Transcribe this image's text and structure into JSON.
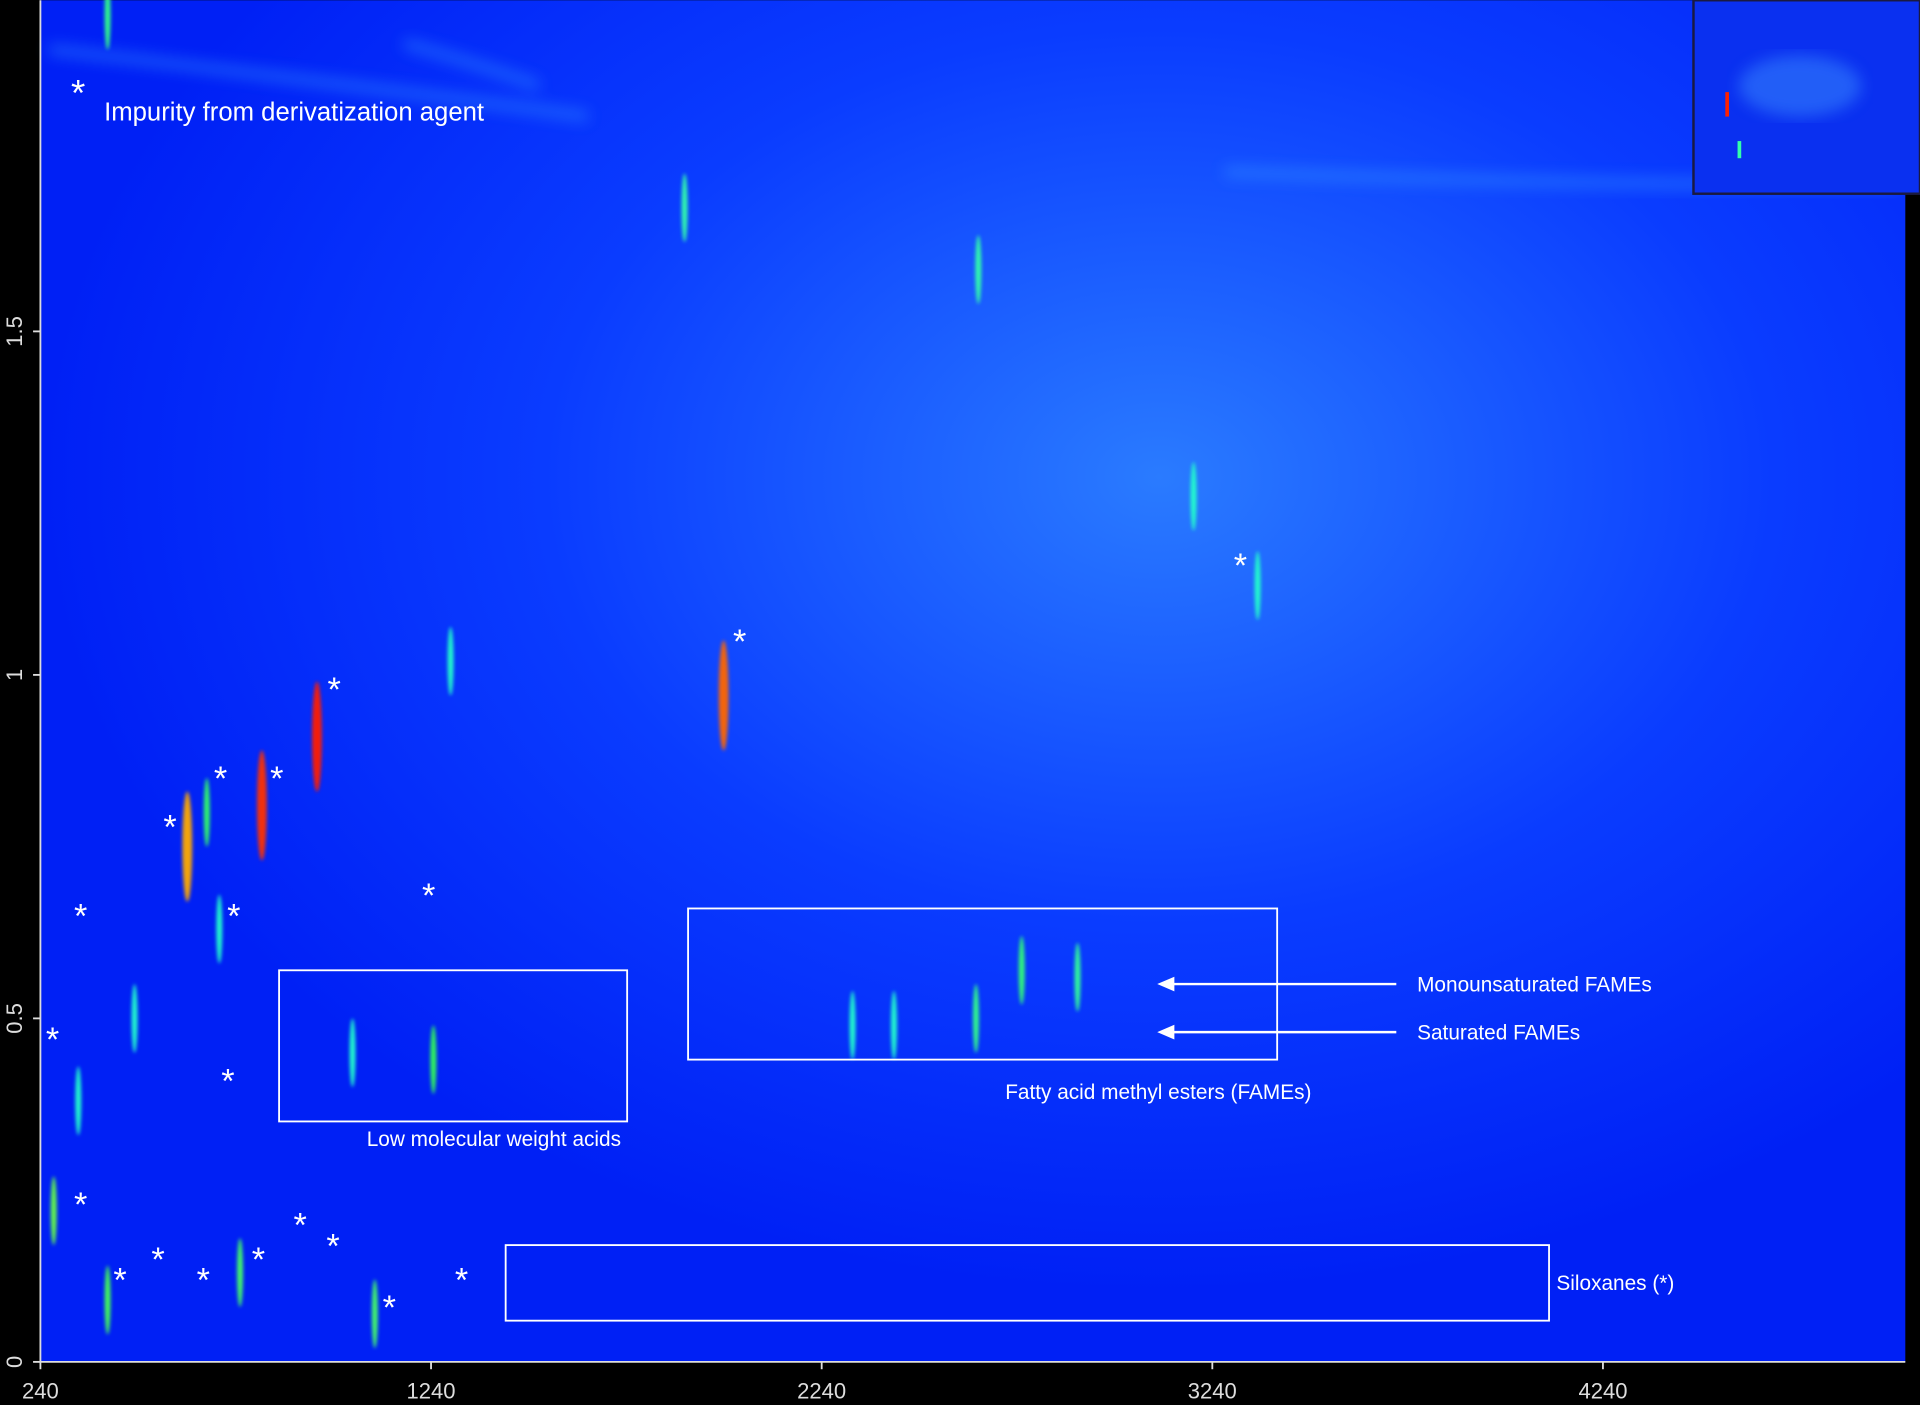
{
  "chart_data": {
    "type": "heatmap",
    "xlim": [
      240,
      5014
    ],
    "ylim": [
      0,
      1.982
    ],
    "xticks": [
      240,
      1240,
      2240,
      3240,
      4240
    ],
    "yticks": [
      0,
      0.5,
      1,
      1.5
    ],
    "legend": {
      "symbol": "*",
      "label": "Impurity from derivatization agent"
    },
    "peaks": {
      "x": [
        948,
        807,
        616,
        666,
        1989,
        1246,
        274,
        412,
        1889,
        2641,
        3356,
        3192,
        2752,
        2635,
        2319,
        2425,
        2895,
        1039,
        1290,
        751,
        412,
        337,
        481,
        698,
        1096
      ],
      "y": [
        0.91,
        0.81,
        0.75,
        0.8,
        0.97,
        0.44,
        0.22,
        1.96,
        1.68,
        1.59,
        1.13,
        1.26,
        0.57,
        0.5,
        0.49,
        0.49,
        0.56,
        0.45,
        1.02,
        0.13,
        0.09,
        0.38,
        0.5,
        0.63,
        0.07
      ],
      "colors": [
        "#ff1a00",
        "#ff3300",
        "#ffaa00",
        "#33ff66",
        "#ff6600",
        "#33ff55",
        "#66ff44",
        "#33ff88",
        "#33ffaa",
        "#33ffaa",
        "#22ffcc",
        "#22ffcc",
        "#33ff77",
        "#33ff88",
        "#22ffcc",
        "#22ffcc",
        "#33ff99",
        "#22ffcc",
        "#22ffcc",
        "#44ff66",
        "#44ff55",
        "#22ffcc",
        "#22ffcc",
        "#22ffcc",
        "#44ff66"
      ]
    },
    "impurities": {
      "x": [
        3312,
        2030,
        992,
        701,
        845,
        572,
        343,
        735,
        1234,
        271,
        720,
        343,
        905,
        989,
        444,
        541,
        657,
        798,
        1318,
        1133
      ],
      "y": [
        1.16,
        1.05,
        0.98,
        0.85,
        0.85,
        0.78,
        0.65,
        0.65,
        0.68,
        0.47,
        0.41,
        0.23,
        0.2,
        0.17,
        0.12,
        0.15,
        0.12,
        0.15,
        0.12,
        0.08
      ]
    },
    "regions": [
      {
        "label": "Low molecular weight acids",
        "x": [
          851,
          1742
        ],
        "y": [
          0.35,
          0.57
        ]
      },
      {
        "label": "Fatty acid methyl esters (FAMEs)",
        "x": [
          1898,
          3406
        ],
        "y": [
          0.44,
          0.66
        ]
      },
      {
        "label": "Siloxanes  (*)",
        "x": [
          1431,
          4102
        ],
        "y": [
          0.06,
          0.17
        ]
      }
    ],
    "arrows": [
      {
        "label": "Monounsaturated FAMEs",
        "x": [
          3711,
          3099
        ],
        "y": 0.55
      },
      {
        "label": "Saturated FAMEs",
        "x": [
          3711,
          3099
        ],
        "y": 0.48
      }
    ]
  }
}
